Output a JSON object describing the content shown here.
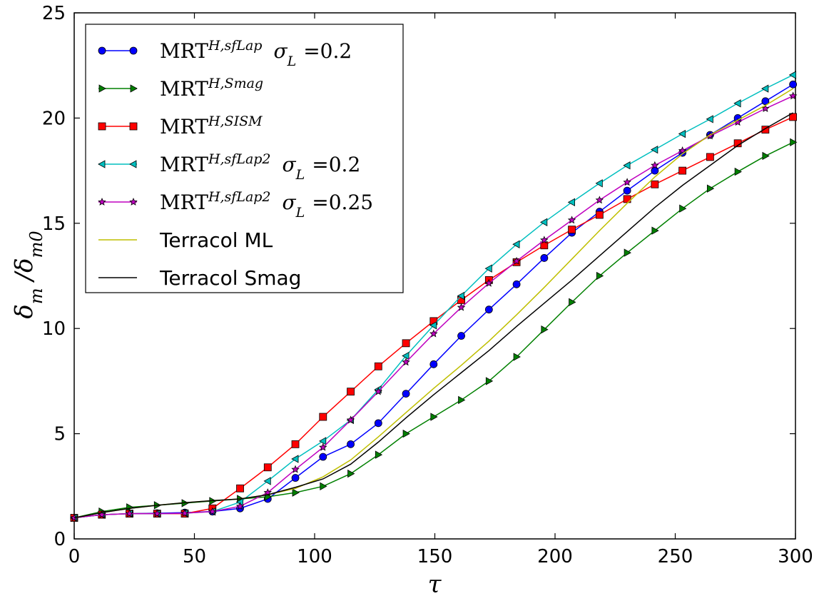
{
  "chart_data": {
    "type": "line",
    "xlabel": "τ",
    "ylabel": "δm /δm0",
    "xlim": [
      0,
      300
    ],
    "ylim": [
      0,
      25
    ],
    "xticks": [
      "0",
      "50",
      "100",
      "150",
      "200",
      "250",
      "300"
    ],
    "yticks": [
      "0",
      "5",
      "10",
      "15",
      "20",
      "25"
    ],
    "grid": false,
    "legend_position": "top-left",
    "x": [
      0,
      11.5,
      23,
      34.5,
      46,
      57.5,
      69,
      80.5,
      92,
      103.5,
      115,
      126.5,
      138,
      149.5,
      161,
      172.5,
      184,
      195.5,
      207,
      218.5,
      230,
      241.5,
      253,
      264.5,
      276,
      287.5,
      299
    ],
    "series": [
      {
        "name": "MRT H,sfLap σL =0.2",
        "legend_main": "MRT",
        "legend_sup": "H,sfLap",
        "legend_extra": "σL =0.2",
        "color": "#0000ff",
        "marker": "circle",
        "values": [
          1.0,
          1.15,
          1.2,
          1.22,
          1.25,
          1.3,
          1.45,
          1.9,
          2.9,
          3.9,
          4.5,
          5.5,
          6.9,
          8.3,
          9.65,
          10.9,
          12.1,
          13.35,
          14.55,
          15.55,
          16.55,
          17.5,
          18.35,
          19.2,
          20.0,
          20.8,
          21.6
        ]
      },
      {
        "name": "MRT H,Smag",
        "legend_main": "MRT",
        "legend_sup": "H,Smag",
        "legend_extra": "",
        "color": "#008000",
        "marker": "triangle-right",
        "values": [
          1.0,
          1.3,
          1.5,
          1.6,
          1.7,
          1.8,
          1.9,
          2.0,
          2.2,
          2.5,
          3.1,
          4.0,
          5.0,
          5.8,
          6.6,
          7.5,
          8.65,
          9.95,
          11.25,
          12.5,
          13.6,
          14.65,
          15.7,
          16.65,
          17.45,
          18.2,
          18.85
        ]
      },
      {
        "name": "MRT H,SISM",
        "legend_main": "MRT",
        "legend_sup": "H,SISM",
        "legend_extra": "",
        "color": "#ff0000",
        "marker": "square",
        "values": [
          1.0,
          1.15,
          1.2,
          1.2,
          1.2,
          1.45,
          2.4,
          3.4,
          4.5,
          5.8,
          7.0,
          8.2,
          9.3,
          10.35,
          11.35,
          12.3,
          13.15,
          13.95,
          14.7,
          15.4,
          16.15,
          16.85,
          17.5,
          18.15,
          18.8,
          19.45,
          20.05
        ]
      },
      {
        "name": "MRT H,sfLap2 σL =0.2",
        "legend_main": "MRT",
        "legend_sup": "H,sfLap2",
        "legend_extra": "σL =0.2",
        "color": "#00bfbf",
        "marker": "triangle-left",
        "values": [
          1.0,
          1.15,
          1.2,
          1.2,
          1.22,
          1.3,
          1.75,
          2.75,
          3.8,
          4.65,
          5.65,
          7.1,
          8.7,
          10.15,
          11.55,
          12.85,
          14.0,
          15.05,
          16.0,
          16.9,
          17.75,
          18.5,
          19.25,
          19.95,
          20.7,
          21.4,
          22.05
        ]
      },
      {
        "name": "MRT H,sfLap2 σL =0.25",
        "legend_main": "MRT",
        "legend_sup": "H,sfLap2",
        "legend_extra": "σL =0.25",
        "color": "#bf00bf",
        "marker": "star",
        "values": [
          1.0,
          1.15,
          1.2,
          1.2,
          1.22,
          1.3,
          1.55,
          2.2,
          3.3,
          4.35,
          5.65,
          7.0,
          8.4,
          9.75,
          11.0,
          12.15,
          13.2,
          14.2,
          15.15,
          16.1,
          16.95,
          17.75,
          18.45,
          19.15,
          19.8,
          20.45,
          21.05
        ]
      },
      {
        "name": "Terracol ML",
        "legend_main": "Terracol ML",
        "legend_sup": "",
        "legend_extra": "",
        "color": "#bfbf00",
        "marker": "none",
        "values": [
          1.0,
          1.25,
          1.45,
          1.6,
          1.72,
          1.82,
          1.9,
          2.1,
          2.4,
          2.95,
          3.75,
          4.85,
          6.0,
          7.15,
          8.25,
          9.4,
          10.65,
          11.95,
          13.3,
          14.65,
          15.95,
          17.2,
          18.3,
          19.2,
          19.9,
          20.6,
          21.4
        ]
      },
      {
        "name": "Terracol Smag",
        "legend_main": "Terracol Smag",
        "legend_sup": "",
        "legend_extra": "",
        "color": "#000000",
        "marker": "none",
        "values": [
          1.0,
          1.25,
          1.45,
          1.6,
          1.72,
          1.82,
          1.9,
          2.1,
          2.45,
          2.85,
          3.55,
          4.6,
          5.75,
          6.85,
          7.9,
          8.95,
          10.1,
          11.2,
          12.3,
          13.45,
          14.6,
          15.75,
          16.8,
          17.75,
          18.7,
          19.5,
          20.25
        ]
      }
    ]
  }
}
